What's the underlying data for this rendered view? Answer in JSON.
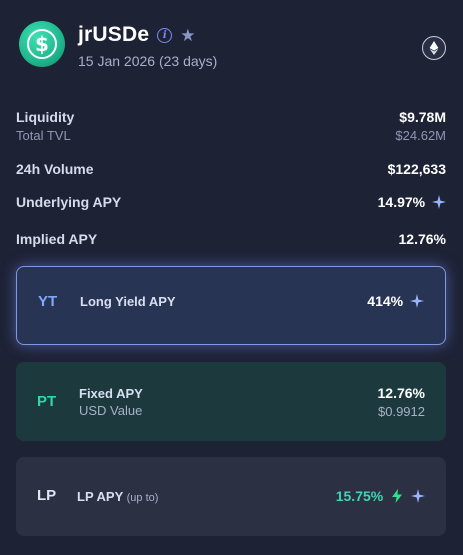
{
  "header": {
    "title": "jrUSDe",
    "maturity": "15 Jan 2026 (23 days)",
    "token_icon": "dollar-coin-icon",
    "network_icon": "ethereum-icon"
  },
  "stats": {
    "liquidity_label": "Liquidity",
    "liquidity_value": "$9.78M",
    "tvl_label": "Total TVL",
    "tvl_value": "$24.62M",
    "volume_label": "24h Volume",
    "volume_value": "$122,633",
    "underlying_label": "Underlying APY",
    "underlying_value": "14.97%",
    "implied_label": "Implied APY",
    "implied_value": "12.76%"
  },
  "yt": {
    "tag": "YT",
    "label": "Long Yield APY",
    "value": "414%"
  },
  "pt": {
    "tag": "PT",
    "label": "Fixed APY",
    "value": "12.76%",
    "usd_label": "USD Value",
    "usd_value": "$0.9912"
  },
  "lp": {
    "tag": "LP",
    "label": "LP APY",
    "qualifier": "(up to)",
    "value": "15.75%"
  },
  "colors": {
    "accent_yt": "#7fa8ff",
    "accent_pt": "#2fd8a8",
    "lp_value": "#3fd6b0",
    "bolt": "#2fe08a"
  }
}
